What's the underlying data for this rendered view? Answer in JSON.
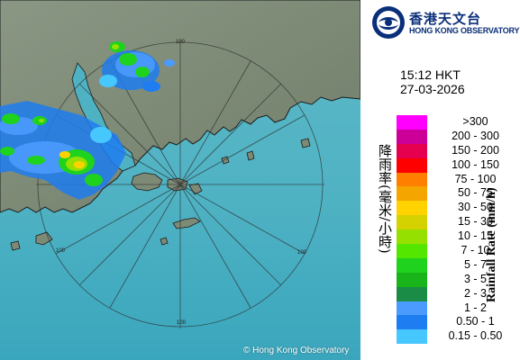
{
  "copyright": "© Hong Kong Observatory",
  "logo": {
    "chinese": "香港天文台",
    "english": "HONG KONG OBSERVATORY"
  },
  "timestamp": {
    "time": "15:12 HKT",
    "date": "27-03-2026"
  },
  "range_ring_label": "100",
  "legend": {
    "title_chinese": "降雨率(毫米/小時)",
    "title_english": "Rainfall Rate (mm/h)",
    "bins": [
      {
        "label": ">300",
        "color": "#ff00ff"
      },
      {
        "label": "200 - 300",
        "color": "#cc0099"
      },
      {
        "label": "150 - 200",
        "color": "#e60050"
      },
      {
        "label": "100 - 150",
        "color": "#ff0000"
      },
      {
        "label": "75 - 100",
        "color": "#ff7f00"
      },
      {
        "label": "50 - 75",
        "color": "#f5a500"
      },
      {
        "label": "30 - 50",
        "color": "#ffd200"
      },
      {
        "label": "15 - 30",
        "color": "#d4d200"
      },
      {
        "label": "10 - 15",
        "color": "#96e000"
      },
      {
        "label": "7 - 10",
        "color": "#55e600"
      },
      {
        "label": "5 - 7",
        "color": "#1ed21e"
      },
      {
        "label": "3 - 5",
        "color": "#19b419"
      },
      {
        "label": "2 - 3",
        "color": "#1a8c46"
      },
      {
        "label": "1 - 2",
        "color": "#4b9bff"
      },
      {
        "label": "0.50 - 1",
        "color": "#1e7df0"
      },
      {
        "label": "0.15 - 0.50",
        "color": "#46c8ff"
      }
    ]
  }
}
